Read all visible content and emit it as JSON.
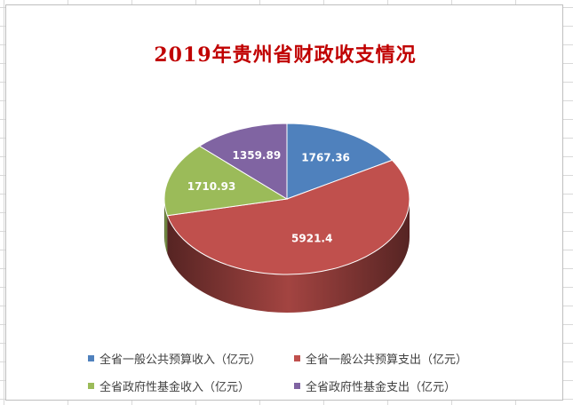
{
  "chart_data": {
    "type": "pie",
    "title": "2019年贵州省财政收支情况",
    "categories": [
      "全省一般公共预算收入（亿元）",
      "全省一般公共预算支出（亿元）",
      "全省政府性基金收入（亿元）",
      "全省政府性基金支出（亿元）"
    ],
    "values": [
      1767.36,
      5921.4,
      1710.93,
      1359.89
    ],
    "data_labels": [
      "1767.36",
      "5921.4",
      "1710.93",
      "1359.89"
    ],
    "colors": [
      "#4f81bd",
      "#c0504d",
      "#9bbb59",
      "#8064a2"
    ],
    "style": "3d",
    "legend_position": "bottom"
  }
}
